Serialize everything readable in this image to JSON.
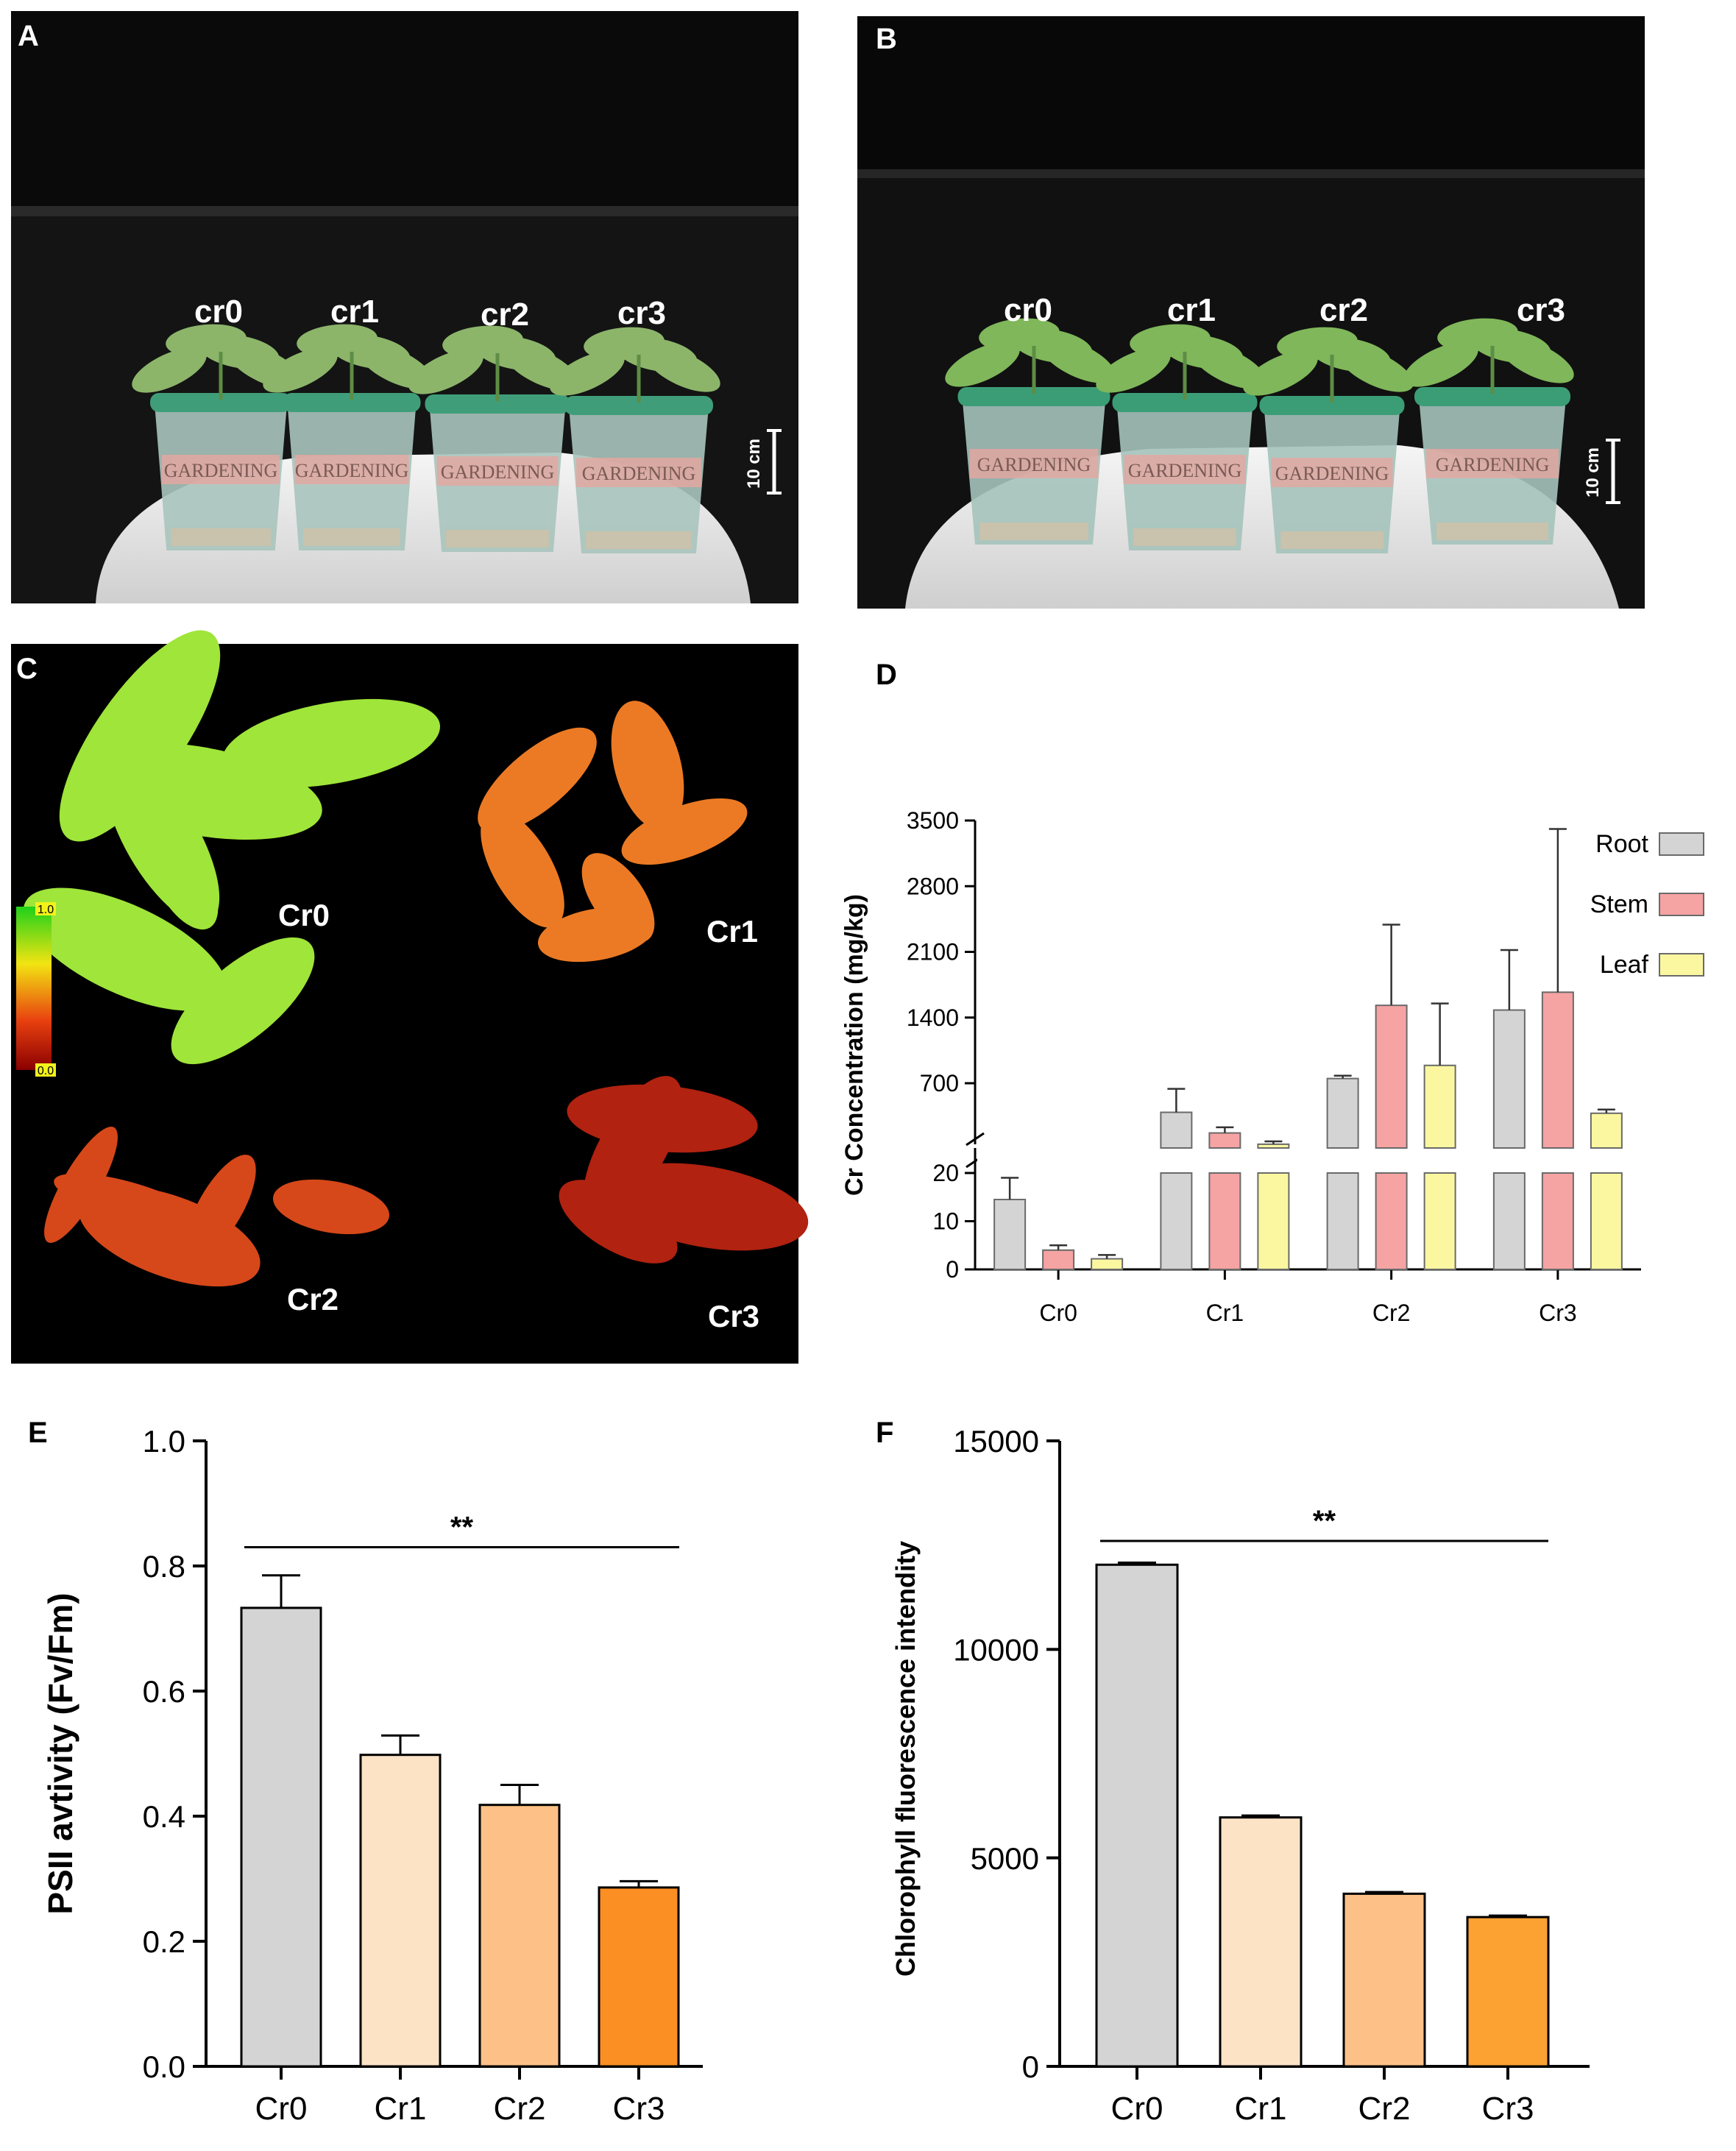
{
  "panels": {
    "A": {
      "letter": "A",
      "labels": [
        "cr0",
        "cr1",
        "cr2",
        "cr3"
      ],
      "scale_bar": "10 cm",
      "pot_text": "GARDENING",
      "colors": {
        "background": "#141414",
        "wall": "#0b0b0b",
        "table": "#e8e8e8",
        "pot": "#a9c4bd",
        "rim": "#3f9e79",
        "leaf": "#8cb56a"
      }
    },
    "B": {
      "letter": "B",
      "labels": [
        "cr0",
        "cr1",
        "cr2",
        "cr3"
      ],
      "scale_bar": "10 cm",
      "pot_text": "GARDENING",
      "colors": {
        "background": "#111111",
        "wall": "#0a0a0a",
        "table": "#ededed",
        "pot": "#a4c3bb",
        "rim": "#3b9d76",
        "leaf": "#7fb75a"
      }
    },
    "C": {
      "letter": "C",
      "labels": [
        "Cr0",
        "Cr1",
        "Cr2",
        "Cr3"
      ],
      "colorbar": {
        "max_label": "1.0",
        "min_label": "0.0",
        "stops": [
          "#1fd11a",
          "#f2e412",
          "#e8400f",
          "#8a0000"
        ]
      },
      "fills": {
        "Cr0": "#9fe53a",
        "Cr1": "#ec7a24",
        "Cr2": "#d6481a",
        "Cr3": "#b12210"
      }
    },
    "D": {
      "letter": "D"
    },
    "E": {
      "letter": "E"
    },
    "F": {
      "letter": "F"
    }
  },
  "chart_data": [
    {
      "panel": "D",
      "type": "bar",
      "categories": [
        "Cr0",
        "Cr1",
        "Cr2",
        "Cr3"
      ],
      "ylabel": "Cr Concentration (mg/kg)",
      "y_axis_broken": true,
      "lower_segment": {
        "ylim": [
          0,
          20
        ],
        "ticks": [
          0,
          10,
          20
        ]
      },
      "upper_segment": {
        "ylim": [
          0,
          3500
        ],
        "ticks": [
          700,
          1400,
          2100,
          2800,
          3500
        ]
      },
      "legend_placement": "top-right",
      "series": [
        {
          "name": "Root",
          "color": "#d4d4d4",
          "values": [
            14.5,
            390,
            750,
            1480
          ],
          "errors": [
            4.5,
            250,
            30,
            640
          ]
        },
        {
          "name": "Stem",
          "color": "#f6a3a3",
          "values": [
            4,
            170,
            1530,
            1670
          ],
          "errors": [
            1,
            60,
            860,
            1740
          ]
        },
        {
          "name": "Leaf",
          "color": "#fbf7a0",
          "values": [
            2.2,
            50,
            890,
            380
          ],
          "errors": [
            0.8,
            30,
            660,
            40
          ]
        }
      ]
    },
    {
      "panel": "E",
      "type": "bar",
      "categories": [
        "Cr0",
        "Cr1",
        "Cr2",
        "Cr3"
      ],
      "values": [
        0.733,
        0.498,
        0.418,
        0.286
      ],
      "errors": [
        0.052,
        0.031,
        0.032,
        0.01
      ],
      "colors": [
        "#d4d4d4",
        "#fde3c6",
        "#fdc187",
        "#fb8f23"
      ],
      "ylabel": "PSII avtivity (Fv/Fm)",
      "ylim": [
        0,
        1.0
      ],
      "ticks": [
        "0.0",
        "0.2",
        "0.4",
        "0.6",
        "0.8",
        "1.0"
      ],
      "significance": {
        "label": "**",
        "y": 0.83
      }
    },
    {
      "panel": "F",
      "type": "bar",
      "categories": [
        "Cr0",
        "Cr1",
        "Cr2",
        "Cr3"
      ],
      "values": [
        12030,
        5970,
        4140,
        3580
      ],
      "errors": [
        50,
        45,
        40,
        35
      ],
      "colors": [
        "#d4d4d4",
        "#fde3c6",
        "#fdc187",
        "#fba233"
      ],
      "ylabel": "Chlorophyll fluorescence intendity",
      "ylim": [
        0,
        15000
      ],
      "ticks": [
        "0",
        "5000",
        "10000",
        "15000"
      ],
      "significance": {
        "label": "**",
        "y": 12600
      }
    }
  ]
}
